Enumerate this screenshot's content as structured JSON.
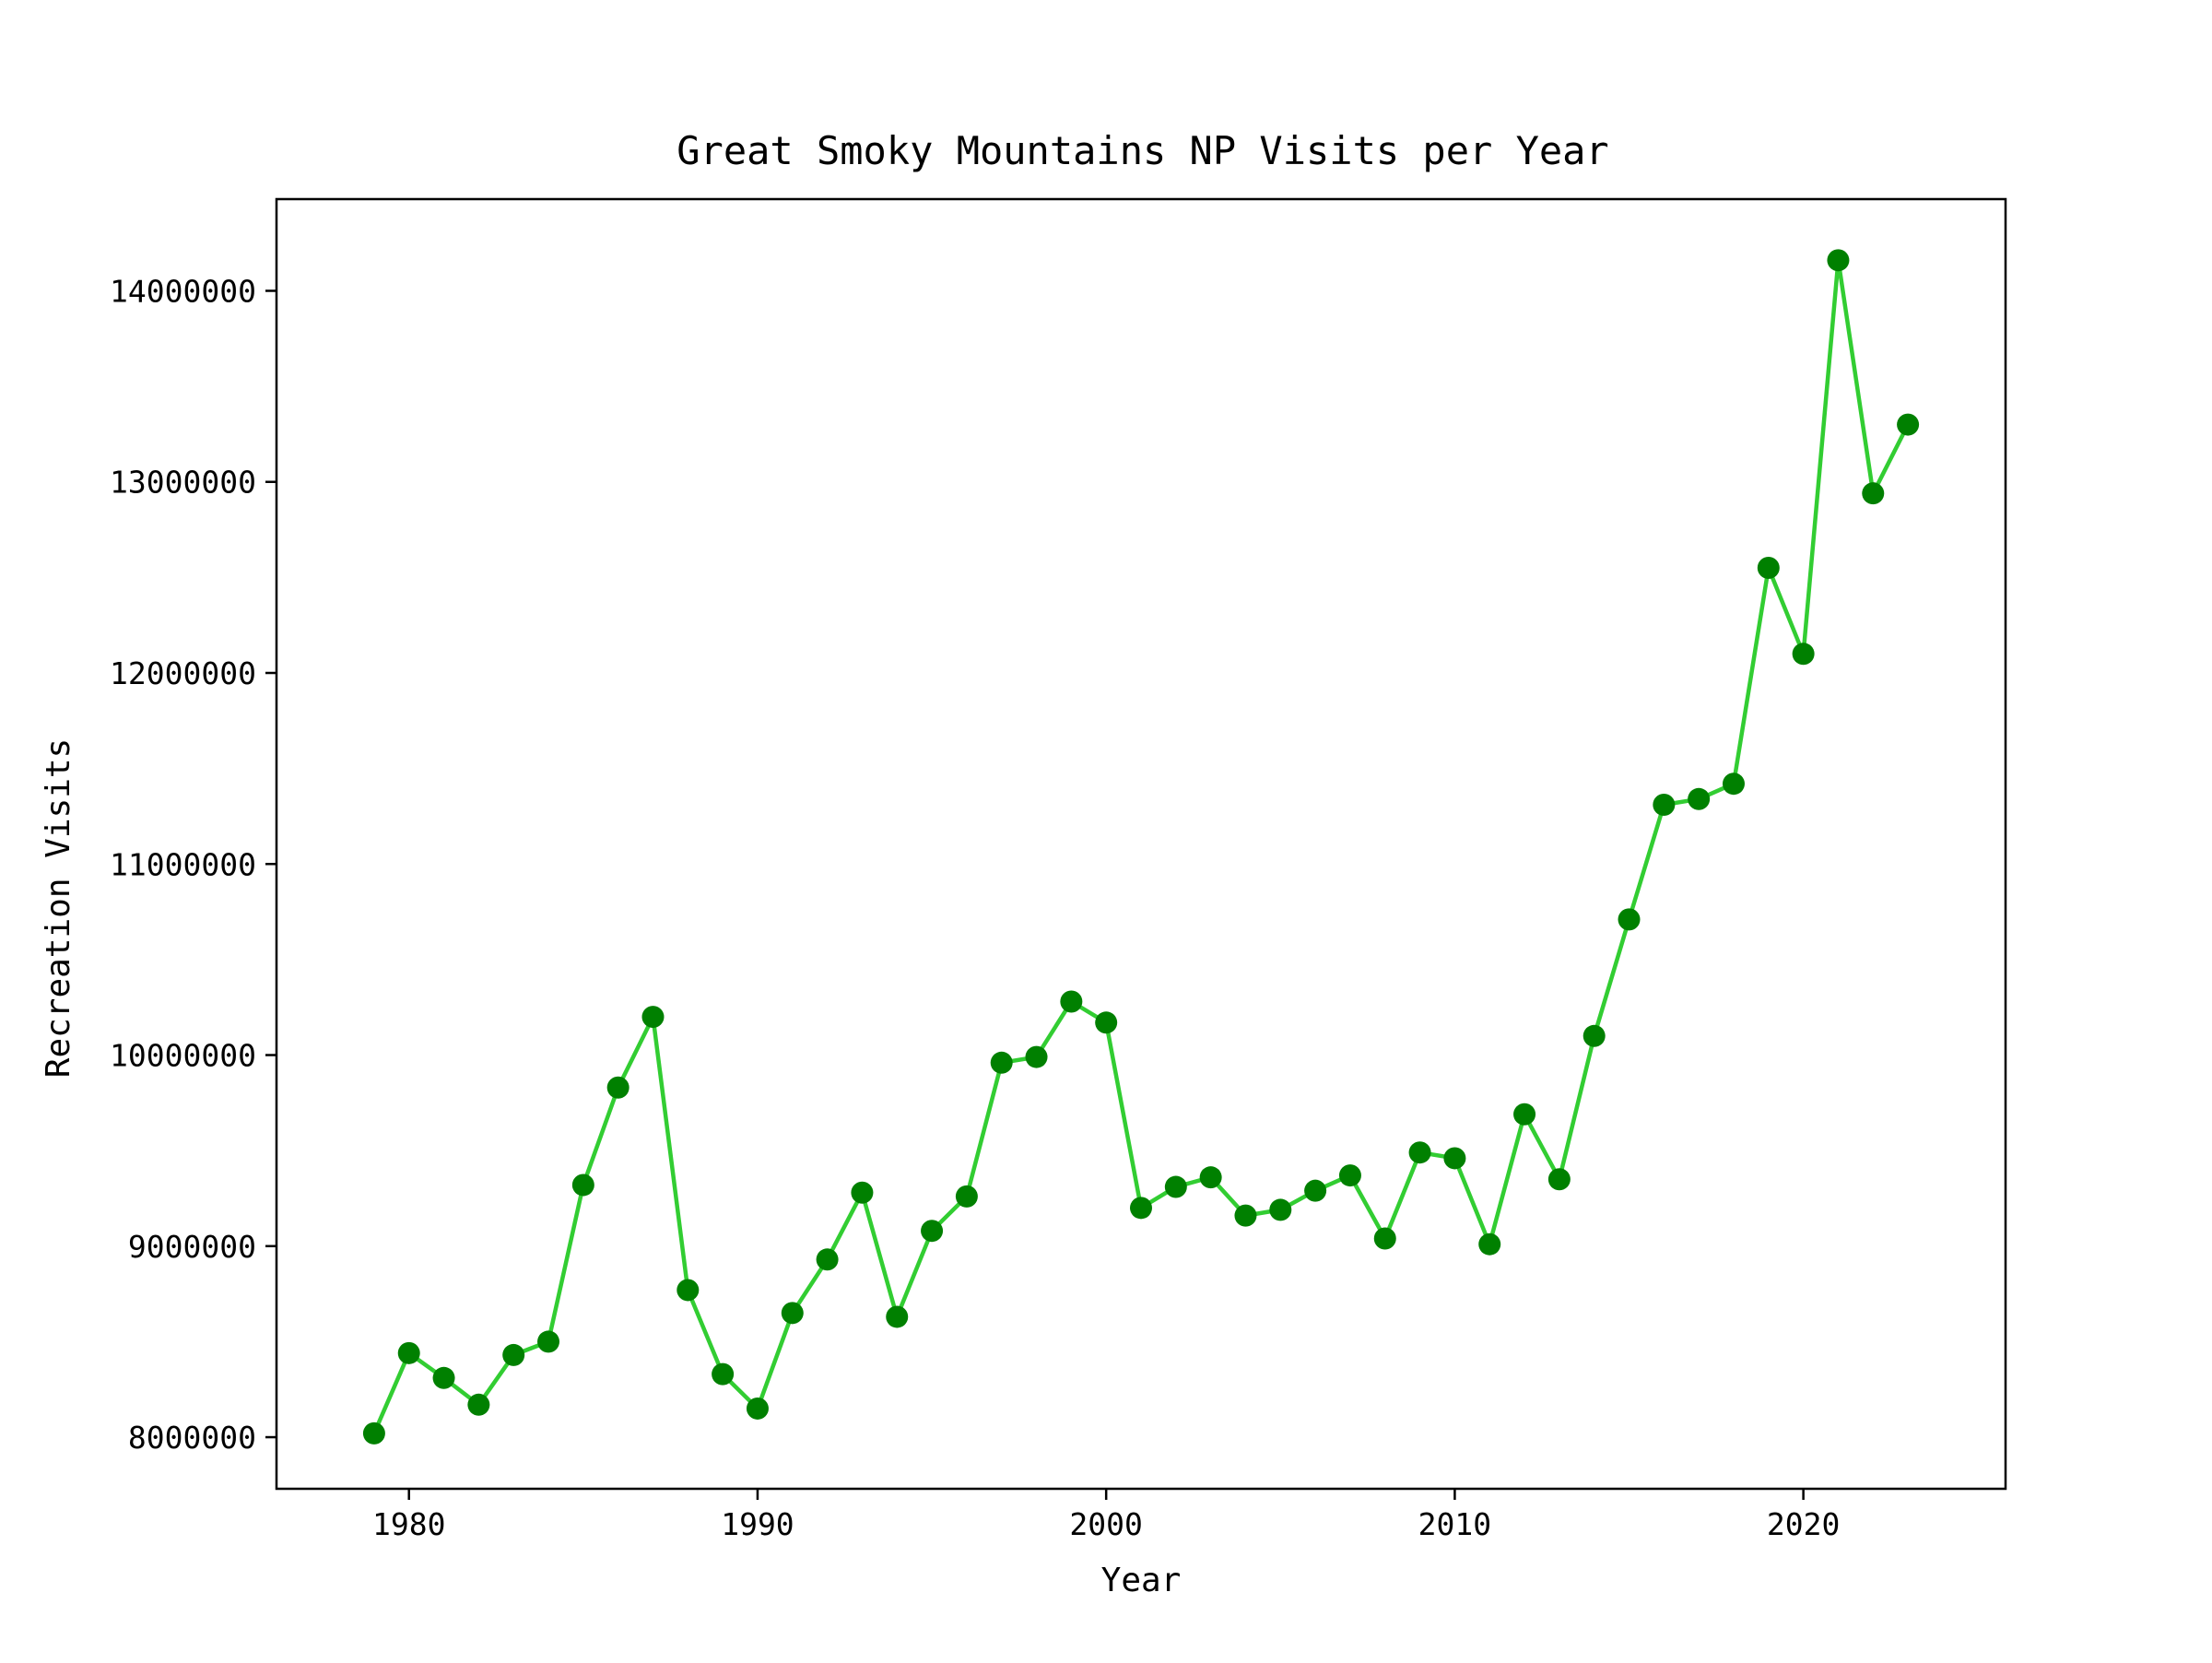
{
  "chart_data": {
    "type": "line",
    "title": "Great Smoky Mountains NP Visits per Year",
    "xlabel": "Year",
    "ylabel": "Recreation Visits",
    "xlim": [
      1976.2,
      2025.8
    ],
    "ylim": [
      7730000,
      14480000
    ],
    "xticks": [
      1980,
      1990,
      2000,
      2010,
      2020
    ],
    "yticks": [
      8000000,
      9000000,
      10000000,
      11000000,
      12000000,
      13000000,
      14000000
    ],
    "grid": false,
    "legend": "none",
    "line_color": "#32cd32",
    "marker_color": "#008000",
    "x": [
      1979,
      1980,
      1981,
      1982,
      1983,
      1984,
      1985,
      1986,
      1987,
      1988,
      1989,
      1990,
      1991,
      1992,
      1993,
      1994,
      1995,
      1996,
      1997,
      1998,
      1999,
      2000,
      2001,
      2002,
      2003,
      2004,
      2005,
      2006,
      2007,
      2008,
      2009,
      2010,
      2011,
      2012,
      2013,
      2014,
      2015,
      2016,
      2017,
      2018,
      2019,
      2020,
      2021,
      2022,
      2023
    ],
    "y": [
      8020000,
      8440000,
      8310000,
      8170000,
      8430000,
      8500000,
      9320000,
      9830000,
      10200000,
      8770000,
      8330000,
      8150000,
      8650000,
      8930000,
      9280000,
      8630000,
      9080000,
      9260000,
      9960000,
      9990000,
      10280000,
      10170000,
      9200000,
      9310000,
      9360000,
      9160000,
      9190000,
      9290000,
      9370000,
      9040000,
      9490000,
      9460000,
      9010000,
      9690000,
      9350000,
      10100000,
      10710000,
      11310000,
      11340000,
      11420000,
      12550000,
      12100000,
      14160000,
      12940000,
      13300000
    ]
  }
}
